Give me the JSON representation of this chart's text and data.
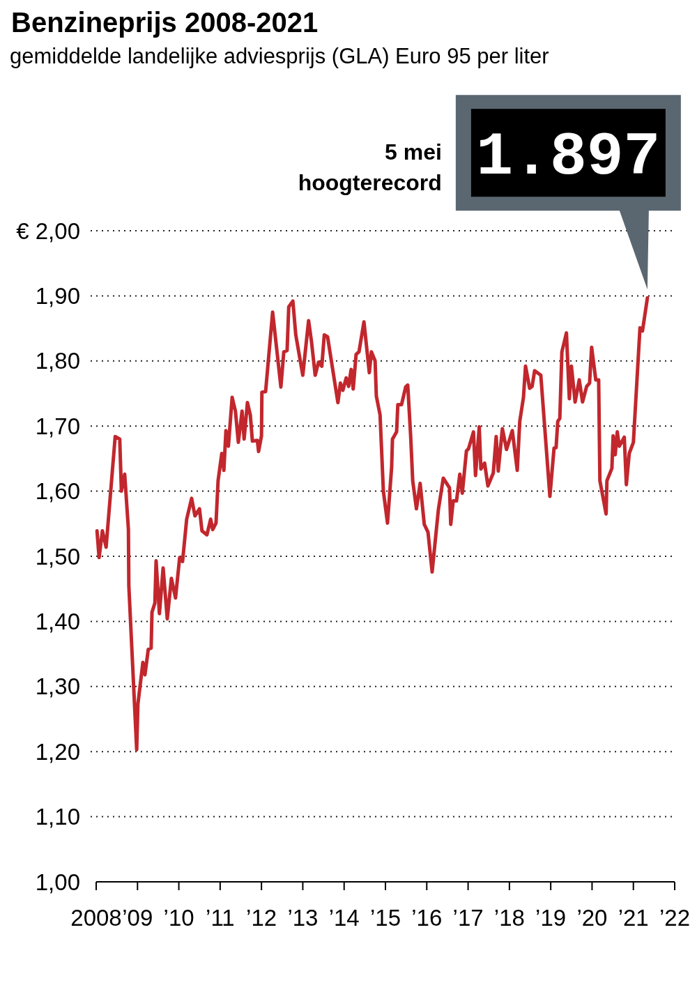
{
  "chart_data": {
    "type": "line",
    "title": "Benzineprijs 2008-2021",
    "subtitle": "gemiddelde landelijke adviesprijs (GLA) Euro 95 per liter",
    "xlim": [
      2008,
      2022
    ],
    "xticks": [
      {
        "value": 2008,
        "label": "2008"
      },
      {
        "value": 2009,
        "label": "’09"
      },
      {
        "value": 2010,
        "label": "’10"
      },
      {
        "value": 2011,
        "label": "’11"
      },
      {
        "value": 2012,
        "label": "’12"
      },
      {
        "value": 2013,
        "label": "’13"
      },
      {
        "value": 2014,
        "label": "’14"
      },
      {
        "value": 2015,
        "label": "’15"
      },
      {
        "value": 2016,
        "label": "’16"
      },
      {
        "value": 2017,
        "label": "’17"
      },
      {
        "value": 2018,
        "label": "’18"
      },
      {
        "value": 2019,
        "label": "’19"
      },
      {
        "value": 2020,
        "label": "’20"
      },
      {
        "value": 2021,
        "label": "’21"
      },
      {
        "value": 2022,
        "label": "’22"
      }
    ],
    "ylim": [
      1.0,
      2.0
    ],
    "yticks": [
      {
        "value": 1.0,
        "label": "1,00"
      },
      {
        "value": 1.1,
        "label": "1,10"
      },
      {
        "value": 1.2,
        "label": "1,20"
      },
      {
        "value": 1.3,
        "label": "1,30"
      },
      {
        "value": 1.4,
        "label": "1,40"
      },
      {
        "value": 1.5,
        "label": "1,50"
      },
      {
        "value": 1.6,
        "label": "1,60"
      },
      {
        "value": 1.7,
        "label": "1,70"
      },
      {
        "value": 1.8,
        "label": "1,80"
      },
      {
        "value": 1.9,
        "label": "1,90"
      },
      {
        "value": 2.0,
        "label": "€ 2,00"
      }
    ],
    "grid": "y",
    "marker": "none",
    "line_style": "solid",
    "annotations": [
      "5 mei hoogterecord",
      {
        "text": "1.897",
        "x": 2021.34,
        "y": 1.897
      }
    ],
    "series": [
      {
        "color": "#c1272d",
        "x": [
          2008.02,
          2008.07,
          2008.15,
          2008.24,
          2008.46,
          2008.57,
          2008.61,
          2008.69,
          2008.78,
          2008.79,
          2008.98,
          2009.01,
          2009.13,
          2009.18,
          2009.26,
          2009.33,
          2009.35,
          2009.42,
          2009.45,
          2009.53,
          2009.62,
          2009.72,
          2009.82,
          2009.92,
          2010.02,
          2010.09,
          2010.19,
          2010.31,
          2010.39,
          2010.5,
          2010.56,
          2010.68,
          2010.77,
          2010.82,
          2010.9,
          2010.95,
          2011.04,
          2011.09,
          2011.14,
          2011.2,
          2011.29,
          2011.37,
          2011.44,
          2011.53,
          2011.58,
          2011.66,
          2011.73,
          2011.78,
          2011.9,
          2011.93,
          2012.0,
          2012.01,
          2012.1,
          2012.27,
          2012.47,
          2012.54,
          2012.62,
          2012.66,
          2012.76,
          2012.83,
          2013.0,
          2013.14,
          2013.21,
          2013.3,
          2013.38,
          2013.46,
          2013.52,
          2013.6,
          2013.85,
          2013.91,
          2013.97,
          2014.05,
          2014.11,
          2014.17,
          2014.22,
          2014.29,
          2014.36,
          2014.48,
          2014.61,
          2014.66,
          2014.75,
          2014.78,
          2014.87,
          2014.95,
          2015.05,
          2015.15,
          2015.17,
          2015.27,
          2015.3,
          2015.39,
          2015.49,
          2015.54,
          2015.61,
          2015.66,
          2015.75,
          2015.84,
          2015.94,
          2016.03,
          2016.13,
          2016.28,
          2016.4,
          2016.55,
          2016.58,
          2016.64,
          2016.72,
          2016.8,
          2016.86,
          2016.96,
          2017.01,
          2017.13,
          2017.18,
          2017.27,
          2017.31,
          2017.4,
          2017.48,
          2017.61,
          2017.68,
          2017.73,
          2017.83,
          2017.93,
          2018.07,
          2018.19,
          2018.25,
          2018.34,
          2018.39,
          2018.49,
          2018.55,
          2018.61,
          2018.76,
          2018.98,
          2019.08,
          2019.13,
          2019.17,
          2019.22,
          2019.27,
          2019.38,
          2019.45,
          2019.5,
          2019.59,
          2019.69,
          2019.77,
          2019.87,
          2019.94,
          2019.99,
          2020.09,
          2020.16,
          2020.19,
          2020.34,
          2020.36,
          2020.48,
          2020.51,
          2020.56,
          2020.61,
          2020.66,
          2020.78,
          2020.83,
          2020.9,
          2021.0,
          2021.16,
          2021.22,
          2021.34
        ],
        "values": [
          1.539,
          1.498,
          1.539,
          1.514,
          1.684,
          1.68,
          1.6,
          1.626,
          1.541,
          1.455,
          1.203,
          1.273,
          1.337,
          1.318,
          1.357,
          1.359,
          1.414,
          1.428,
          1.493,
          1.412,
          1.482,
          1.404,
          1.466,
          1.436,
          1.498,
          1.492,
          1.557,
          1.589,
          1.562,
          1.573,
          1.539,
          1.533,
          1.557,
          1.541,
          1.551,
          1.616,
          1.658,
          1.632,
          1.693,
          1.669,
          1.744,
          1.723,
          1.675,
          1.723,
          1.68,
          1.736,
          1.717,
          1.677,
          1.678,
          1.661,
          1.685,
          1.752,
          1.753,
          1.875,
          1.76,
          1.814,
          1.816,
          1.883,
          1.892,
          1.84,
          1.778,
          1.862,
          1.83,
          1.778,
          1.798,
          1.792,
          1.84,
          1.837,
          1.736,
          1.766,
          1.755,
          1.774,
          1.761,
          1.787,
          1.757,
          1.81,
          1.814,
          1.86,
          1.782,
          1.814,
          1.8,
          1.746,
          1.717,
          1.6,
          1.551,
          1.637,
          1.68,
          1.691,
          1.733,
          1.733,
          1.76,
          1.763,
          1.685,
          1.616,
          1.573,
          1.612,
          1.549,
          1.537,
          1.476,
          1.571,
          1.62,
          1.605,
          1.549,
          1.585,
          1.585,
          1.626,
          1.597,
          1.662,
          1.665,
          1.691,
          1.624,
          1.699,
          1.634,
          1.643,
          1.608,
          1.628,
          1.684,
          1.631,
          1.696,
          1.664,
          1.693,
          1.632,
          1.707,
          1.744,
          1.792,
          1.758,
          1.761,
          1.785,
          1.778,
          1.592,
          1.666,
          1.667,
          1.707,
          1.712,
          1.814,
          1.843,
          1.742,
          1.792,
          1.737,
          1.771,
          1.737,
          1.761,
          1.766,
          1.821,
          1.771,
          1.771,
          1.616,
          1.565,
          1.616,
          1.635,
          1.685,
          1.656,
          1.691,
          1.669,
          1.683,
          1.61,
          1.658,
          1.675,
          1.851,
          1.846,
          1.897
        ]
      }
    ]
  }
}
